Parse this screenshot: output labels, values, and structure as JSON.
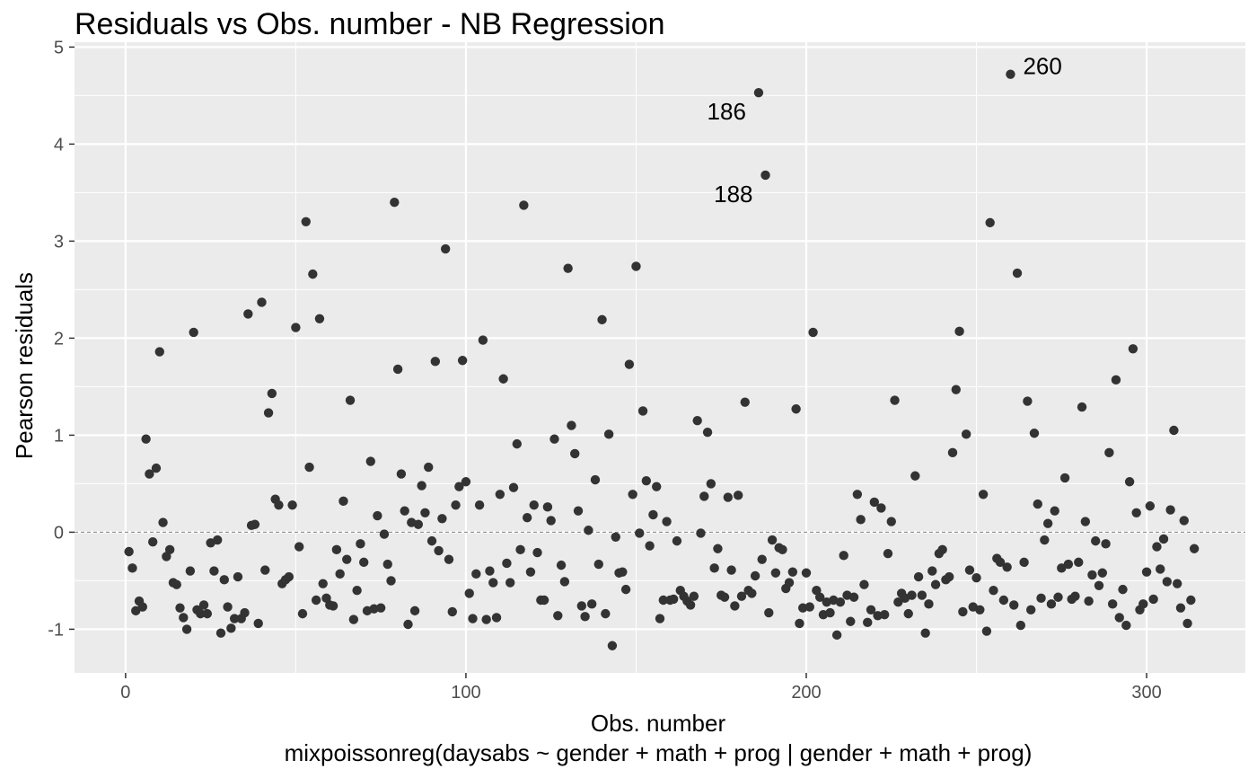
{
  "chart_data": {
    "type": "scatter",
    "title": "Residuals vs Obs. number - NB Regression",
    "xlabel": "Obs. number",
    "ylabel": "Pearson residuals",
    "caption": "mixpoissonreg(daysabs ~ gender + math + prog | gender + math + prog)",
    "xlim": [
      -15,
      329
    ],
    "ylim": [
      -1.45,
      5.05
    ],
    "x_ticks": [
      0,
      100,
      200,
      300
    ],
    "y_ticks": [
      -1,
      0,
      1,
      2,
      3,
      4,
      5
    ],
    "reference_line": {
      "y": 0,
      "style": "dashed"
    },
    "grid": true,
    "colors": {
      "panel": "#ebebeb",
      "grid": "#ffffff",
      "point": "#333333",
      "ref_line": "#808080"
    },
    "annotations": [
      {
        "label": "186",
        "x": 186,
        "y": 4.53,
        "pos": "left"
      },
      {
        "label": "188",
        "x": 188,
        "y": 3.68,
        "pos": "left"
      },
      {
        "label": "260",
        "x": 260,
        "y": 4.72,
        "pos": "right"
      }
    ],
    "x": [
      1,
      2,
      3,
      4,
      5,
      6,
      7,
      8,
      9,
      10,
      11,
      12,
      13,
      14,
      15,
      16,
      17,
      18,
      19,
      20,
      21,
      22,
      23,
      24,
      25,
      26,
      27,
      28,
      29,
      30,
      31,
      32,
      33,
      34,
      35,
      36,
      37,
      38,
      39,
      40,
      41,
      42,
      43,
      44,
      45,
      46,
      47,
      48,
      49,
      50,
      51,
      52,
      53,
      54,
      55,
      56,
      57,
      58,
      59,
      60,
      61,
      62,
      63,
      64,
      65,
      66,
      67,
      68,
      69,
      70,
      71,
      72,
      73,
      74,
      75,
      76,
      77,
      78,
      79,
      80,
      81,
      82,
      83,
      84,
      85,
      86,
      87,
      88,
      89,
      90,
      91,
      92,
      93,
      94,
      95,
      96,
      97,
      98,
      99,
      100,
      101,
      102,
      103,
      104,
      105,
      106,
      107,
      108,
      109,
      110,
      111,
      112,
      113,
      114,
      115,
      116,
      117,
      118,
      119,
      120,
      121,
      122,
      123,
      124,
      125,
      126,
      127,
      128,
      129,
      130,
      131,
      132,
      133,
      134,
      135,
      136,
      137,
      138,
      139,
      140,
      141,
      142,
      143,
      144,
      145,
      146,
      147,
      148,
      149,
      150,
      151,
      152,
      153,
      154,
      155,
      156,
      157,
      158,
      159,
      160,
      161,
      162,
      163,
      164,
      165,
      166,
      167,
      168,
      169,
      170,
      171,
      172,
      173,
      174,
      175,
      176,
      177,
      178,
      179,
      180,
      181,
      182,
      183,
      184,
      185,
      186,
      187,
      188,
      189,
      190,
      191,
      192,
      193,
      194,
      195,
      196,
      197,
      198,
      199,
      200,
      201,
      202,
      203,
      204,
      205,
      206,
      207,
      208,
      209,
      210,
      211,
      212,
      213,
      214,
      215,
      216,
      217,
      218,
      219,
      220,
      221,
      222,
      223,
      224,
      225,
      226,
      227,
      228,
      229,
      230,
      231,
      232,
      233,
      234,
      235,
      236,
      237,
      238,
      239,
      240,
      241,
      242,
      243,
      244,
      245,
      246,
      247,
      248,
      249,
      250,
      251,
      252,
      253,
      254,
      255,
      256,
      257,
      258,
      259,
      260,
      261,
      262,
      263,
      264,
      265,
      266,
      267,
      268,
      269,
      270,
      271,
      272,
      273,
      274,
      275,
      276,
      277,
      278,
      279,
      280,
      281,
      282,
      283,
      284,
      285,
      286,
      287,
      288,
      289,
      290,
      291,
      292,
      293,
      294,
      295,
      296,
      297,
      298,
      299,
      300,
      301,
      302,
      303,
      304,
      305,
      306,
      307,
      308,
      309,
      310,
      311,
      312,
      313,
      314
    ],
    "y": [
      -0.2,
      -0.37,
      -0.81,
      -0.71,
      -0.77,
      0.96,
      0.6,
      -0.1,
      0.66,
      1.86,
      0.1,
      -0.25,
      -0.18,
      -0.52,
      -0.54,
      -0.78,
      -0.88,
      -1.0,
      -0.4,
      2.06,
      -0.8,
      -0.84,
      -0.75,
      -0.84,
      -0.11,
      -0.4,
      -0.08,
      -1.04,
      -0.49,
      -0.77,
      -0.99,
      -0.89,
      -0.46,
      -0.89,
      -0.83,
      2.25,
      0.07,
      0.08,
      -0.94,
      2.37,
      -0.39,
      1.23,
      1.43,
      0.34,
      0.28,
      -0.53,
      -0.49,
      -0.46,
      0.28,
      2.11,
      -0.15,
      -0.84,
      3.2,
      0.67,
      2.66,
      -0.7,
      2.2,
      -0.53,
      -0.68,
      -0.75,
      -0.76,
      -0.18,
      -0.43,
      0.32,
      -0.28,
      1.36,
      -0.9,
      -0.6,
      -0.12,
      -0.31,
      -0.81,
      0.73,
      -0.79,
      0.17,
      -0.78,
      -0.02,
      -0.33,
      -0.5,
      3.4,
      1.68,
      0.6,
      0.22,
      -0.95,
      0.1,
      -0.81,
      0.08,
      0.48,
      0.2,
      0.67,
      -0.09,
      1.76,
      -0.19,
      0.14,
      2.92,
      -0.28,
      -0.82,
      0.28,
      0.47,
      1.77,
      0.52,
      -0.63,
      -0.89,
      -0.43,
      0.28,
      1.98,
      -0.9,
      -0.4,
      -0.52,
      -0.88,
      0.39,
      1.58,
      -0.32,
      -0.52,
      0.46,
      0.91,
      -0.18,
      3.37,
      0.15,
      -0.41,
      0.28,
      -0.21,
      -0.7,
      -0.7,
      0.26,
      0.12,
      0.96,
      -0.86,
      -0.34,
      -0.51,
      2.72,
      1.1,
      0.81,
      0.22,
      -0.76,
      -0.87,
      0.02,
      -0.74,
      0.54,
      -0.33,
      2.19,
      -0.84,
      1.01,
      -1.17,
      -0.05,
      -0.42,
      -0.41,
      -0.59,
      1.73,
      0.39,
      2.74,
      -0.01,
      1.25,
      0.53,
      -0.14,
      0.18,
      0.47,
      -0.89,
      -0.7,
      0.11,
      -0.7,
      -0.69,
      -0.09,
      -0.6,
      -0.66,
      -0.71,
      -0.75,
      -0.66,
      1.15,
      -0.01,
      0.37,
      1.03,
      0.5,
      -0.37,
      -0.17,
      -0.65,
      -0.67,
      0.36,
      -0.39,
      -0.76,
      0.38,
      -0.66,
      1.34,
      -0.6,
      -0.63,
      -0.45,
      4.53,
      -0.28,
      3.68,
      -0.83,
      -0.08,
      -0.42,
      -0.16,
      -0.18,
      -0.58,
      -0.52,
      -0.41,
      1.27,
      -0.94,
      -0.78,
      -0.42,
      -0.77,
      2.06,
      -0.6,
      -0.67,
      -0.85,
      -0.72,
      -0.83,
      -0.7,
      -1.06,
      -0.72,
      -0.24,
      -0.65,
      -0.92,
      -0.67,
      0.39,
      0.13,
      -0.54,
      -0.93,
      -0.8,
      0.31,
      -0.86,
      0.25,
      -0.85,
      -0.22,
      0.11,
      1.36,
      -0.72,
      -0.63,
      -0.68,
      -0.84,
      -0.65,
      0.58,
      -0.46,
      -0.65,
      -1.04,
      -0.74,
      -0.4,
      -0.54,
      -0.22,
      -0.18,
      -0.49,
      -0.46,
      0.82,
      1.47,
      2.07,
      -0.82,
      1.01,
      -0.39,
      -0.77,
      -0.47,
      -0.8,
      0.39,
      -1.02,
      3.19,
      -0.6,
      -0.27,
      -0.31,
      -0.7,
      -0.36,
      4.72,
      -0.75,
      2.67,
      -0.96,
      -0.31,
      1.35,
      -0.8,
      1.02,
      0.29,
      -0.68,
      -0.08,
      0.09,
      -0.74,
      0.22,
      -0.67,
      -0.37,
      0.56,
      -0.33,
      -0.69,
      -0.66,
      -0.31,
      1.29,
      0.11,
      -0.71,
      -0.44,
      -0.09,
      -0.55,
      -0.42,
      -0.12,
      0.82,
      -0.74,
      1.57,
      -0.88,
      -0.59,
      -0.96,
      0.52,
      1.89,
      0.2,
      -0.8,
      -0.74,
      -0.41,
      0.27,
      -0.69,
      -0.15,
      -0.38,
      -0.07,
      -0.51,
      0.23,
      1.05,
      -0.53,
      -0.78,
      0.12,
      -0.94,
      -0.7,
      -0.17
    ]
  }
}
